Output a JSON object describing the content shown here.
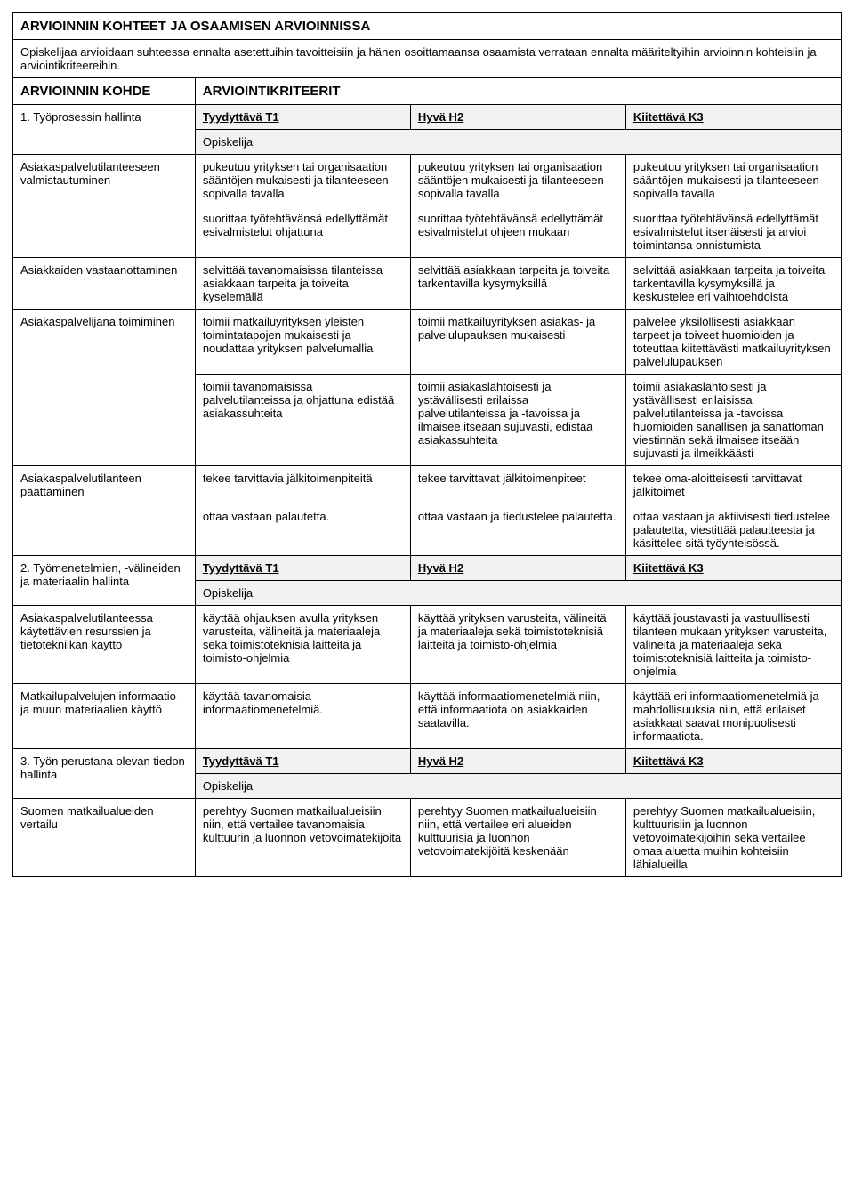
{
  "title": "ARVIOINNIN KOHTEET JA OSAAMISEN ARVIOINNISSA",
  "intro": "Opiskelijaa arvioidaan suhteessa ennalta asetettuihin tavoitteisiin ja hänen osoittamaansa osaamista verrataan ennalta määriteltyihin arvioinnin kohteisiin ja arviointikriteereihin.",
  "section_headers": {
    "left": "ARVIOINNIN KOHDE",
    "right": "ARVIOINTIKRITEERIT"
  },
  "levels": {
    "t1": "Tyydyttävä T1",
    "h2": "Hyvä H2",
    "k3": "Kiitettävä K3"
  },
  "opiskelija": "Opiskelija",
  "group1": {
    "heading": "1. Työprosessin hallinta",
    "rows": [
      {
        "label": "Asiakaspalvelutilanteeseen valmistautuminen",
        "t1a": "pukeutuu yrityksen tai organisaation sääntöjen mukaisesti ja tilanteeseen sopivalla tavalla",
        "h2a": "pukeutuu yrityksen tai organisaation sääntöjen mukaisesti ja tilanteeseen sopivalla tavalla",
        "k3a": "pukeutuu yrityksen tai organisaation sääntöjen mukaisesti ja tilanteeseen sopivalla tavalla",
        "t1b": "suorittaa työtehtävänsä edellyttämät esivalmistelut ohjattuna",
        "h2b": "suorittaa työtehtävänsä edellyttämät esivalmistelut ohjeen mukaan",
        "k3b": "suorittaa työtehtävänsä edellyttämät esivalmistelut itsenäisesti ja arvioi toimintansa onnistumista"
      },
      {
        "label": "Asiakkaiden vastaanottaminen",
        "t1": "selvittää tavanomaisissa tilanteissa asiakkaan tarpeita ja toiveita kyselemällä",
        "h2": "selvittää asiakkaan tarpeita ja toiveita tarkentavilla kysymyksillä",
        "k3": "selvittää asiakkaan tarpeita ja toiveita tarkentavilla kysymyksillä ja keskustelee eri vaihtoehdoista"
      },
      {
        "label": "Asiakaspalvelijana toimiminen",
        "t1a": "toimii matkailuyrityksen yleisten toimintatapojen mukaisesti ja noudattaa yrityksen palvelumallia",
        "h2a": "toimii matkailuyrityksen asiakas- ja palvelulupauksen mukaisesti",
        "k3a": "palvelee yksilöllisesti asiakkaan tarpeet ja toiveet huomioiden ja toteuttaa kiitettävästi matkailuyrityksen palvelulupauksen",
        "t1b": "toimii tavanomaisissa palvelutilanteissa ja ohjattuna edistää asiakassuhteita",
        "h2b": "toimii asiakaslähtöisesti ja ystävällisesti erilaissa palvelutilanteissa ja -tavoissa ja ilmaisee itseään sujuvasti, edistää asiakassuhteita",
        "k3b": "toimii asiakaslähtöisesti ja ystävällisesti erilaisissa palvelutilanteissa ja -tavoissa huomioiden sanallisen ja sanattoman viestinnän sekä ilmaisee itseään sujuvasti ja ilmeikkäästi"
      },
      {
        "label": "Asiakaspalvelutilanteen päättäminen",
        "t1a": "tekee tarvittavia jälkitoimenpiteitä",
        "h2a": "tekee tarvittavat jälkitoimenpiteet",
        "k3a": "tekee oma-aloitteisesti tarvittavat jälkitoimet",
        "t1b": "ottaa vastaan palautetta.",
        "h2b": "ottaa vastaan ja tiedustelee palautetta.",
        "k3b": "ottaa vastaan ja aktiivisesti tiedustelee palautetta, viestittää palautteesta ja käsittelee sitä työyhteisössä."
      }
    ]
  },
  "group2": {
    "heading": "2. Työmenetelmien, -välineiden ja materiaalin hallinta",
    "rows": [
      {
        "label": "Asiakaspalvelutilanteessa käytettävien resurssien ja tietotekniikan käyttö",
        "t1": "käyttää ohjauksen avulla yrityksen varusteita, välineitä ja materiaaleja sekä toimistoteknisiä laitteita ja toimisto-ohjelmia",
        "h2": "käyttää yrityksen varusteita, välineitä ja materiaaleja sekä toimistoteknisiä laitteita ja toimisto-ohjelmia",
        "k3": "käyttää joustavasti ja vastuullisesti tilanteen mukaan yrityksen varusteita, välineitä ja materiaaleja sekä toimistoteknisiä laitteita ja toimisto-ohjelmia"
      },
      {
        "label": "Matkailupalvelujen informaatio- ja muun materiaalien käyttö",
        "t1": "käyttää tavanomaisia informaatiomenetelmiä.",
        "h2": "käyttää informaatiomenetelmiä niin, että informaatiota on asiakkaiden saatavilla.",
        "k3": "käyttää eri informaatiomenetelmiä ja mahdollisuuksia niin, että erilaiset asiakkaat saavat monipuolisesti informaatiota."
      }
    ]
  },
  "group3": {
    "heading": "3. Työn perustana olevan tiedon hallinta",
    "rows": [
      {
        "label": "Suomen matkailualueiden vertailu",
        "t1": "perehtyy Suomen matkailualueisiin niin, että vertailee tavanomaisia kulttuurin ja luonnon vetovoimatekijöitä",
        "h2": "perehtyy Suomen matkailualueisiin niin, että vertailee eri alueiden kulttuurisia ja luonnon vetovoimatekijöitä keskenään",
        "k3": "perehtyy Suomen matkailualueisiin, kulttuurisiin ja luonnon vetovoimatekijöihin sekä vertailee omaa aluetta muihin kohteisiin lähialueilla"
      }
    ]
  }
}
